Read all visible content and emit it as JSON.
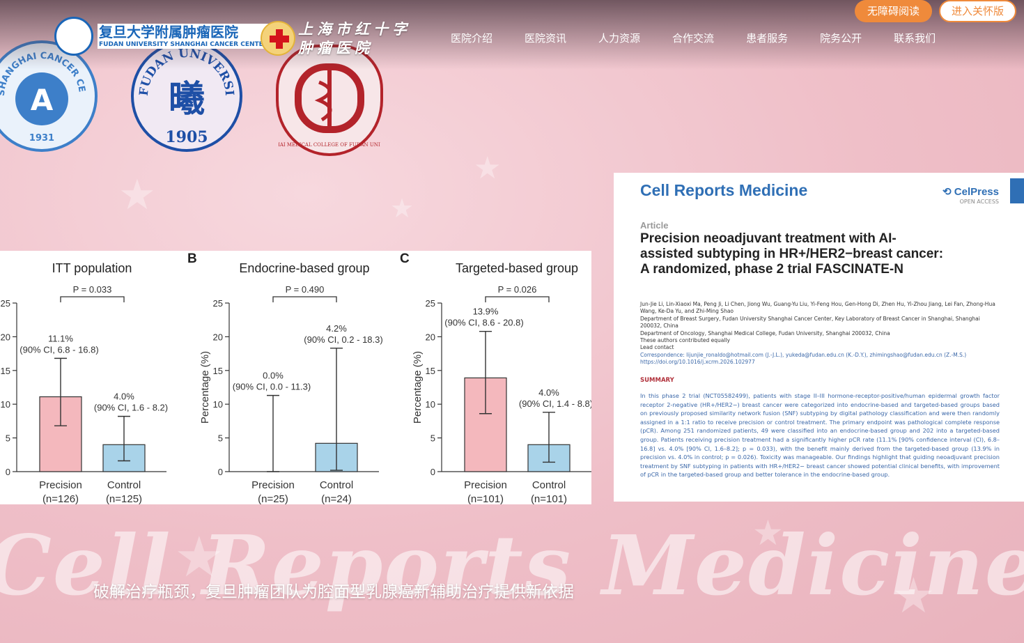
{
  "header": {
    "hospital_name_cn": "复旦大学附属肿瘤医院",
    "hospital_name_en": "FUDAN UNIVERSITY SHANGHAI CANCER CENTER",
    "redcross_name_line1": "上海市红十字",
    "redcross_name_line2": "肿瘤医院",
    "accessibility_button": "无障碍阅读",
    "care_button": "进入关怀版",
    "nav": [
      "医院介绍",
      "医院资讯",
      "人力资源",
      "合作交流",
      "患者服务",
      "院务公开",
      "联系我们"
    ]
  },
  "logos": {
    "cancer_center_text": "SHANGHAI CANCER CENTER",
    "cancer_center_year": "1931",
    "fudan_text": "FUDAN UNIVERSITY",
    "fudan_year": "1905",
    "fudan_glyph": "曦",
    "smc_text": "SHANGHAI MEDICAL COLLEGE OF FUDAN UNIVERSITY"
  },
  "paper": {
    "journal": "Cell Reports Medicine",
    "publisher": "CelPress",
    "open_access": "OPEN ACCESS",
    "article_label": "Article",
    "title": "Precision neoadjuvant treatment with AI-assisted subtyping in HR+/HER2−breast cancer: A randomized, phase 2 trial FASCINATE-N",
    "authors": "Jun-Jie Li, Lin-Xiaoxi Ma, Peng Ji, Li Chen, Jiong Wu, Guang-Yu Liu, Yi-Feng Hou, Gen-Hong Di, Zhen Hu, Yi-Zhou Jiang, Lei Fan, Zhong-Hua Wang, Ke-Da Yu, and Zhi-Ming Shao",
    "affiliation1": "Department of Breast Surgery, Fudan University Shanghai Cancer Center, Key Laboratory of Breast Cancer in Shanghai, Shanghai 200032, China",
    "affiliation2": "Department of Oncology, Shanghai Medical College, Fudan University, Shanghai 200032, China",
    "note_equal": "These authors contributed equally",
    "note_lead": "Lead contact",
    "correspondence": "Correspondence: lijunjie_ronaldo@hotmail.com (J.-J.L.), yukeda@fudan.edu.cn (K.-D.Y.), zhimingshao@fudan.edu.cn (Z.-M.S.)",
    "doi": "https://doi.org/10.1016/j.xcrm.2026.102977",
    "summary_heading": "SUMMARY",
    "summary": "In this phase 2 trial (NCT05582499), patients with stage II–III hormone-receptor-positive/human epidermal growth factor receptor 2-negative (HR+/HER2−) breast cancer were categorized into endocrine-based and targeted-based groups based on previously proposed similarity network fusion (SNF) subtyping by digital pathology classification and were then randomly assigned in a 1:1 ratio to receive precision or control treatment. The primary endpoint was pathological complete response (pCR). Among 251 randomized patients, 49 were classified into an endocrine-based group and 202 into a targeted-based group. Patients receiving precision treatment had a significantly higher pCR rate (11.1% [90% confidence interval (CI), 6.8–16.8] vs. 4.0% [90% CI, 1.6–8.2]; p = 0.033), with the benefit mainly derived from the targeted-based group (13.9% in precision vs. 4.0% in control; p = 0.026). Toxicity was manageable. Our findings highlight that guiding neoadjuvant precision treatment by SNF subtyping in patients with HR+/HER2− breast cancer showed potential clinical benefits, with improvement of pCR in the targeted-based group and better tolerance in the endocrine-based group."
  },
  "watermark": "Cell Reports Medicine",
  "caption": "破解治疗瓶颈，复旦肿瘤团队为腔面型乳腺癌新辅助治疗提供新依据",
  "colors": {
    "precision": "#f4b8bd",
    "control": "#a9d3e9",
    "accent": "#ef8a3b",
    "brand": "#1a66b8"
  },
  "chart_data": [
    {
      "type": "bar",
      "panel_letter": "",
      "title": "ITT population",
      "ylabel": "",
      "ylim": [
        0,
        25
      ],
      "yticks": [
        0,
        5,
        10,
        15,
        20,
        25
      ],
      "categories": [
        "Precision\n(n=126)",
        "Control\n(n=125)"
      ],
      "values": [
        11.1,
        4.0
      ],
      "ci": [
        [
          6.8,
          16.8
        ],
        [
          1.6,
          8.2
        ]
      ],
      "labels": [
        "11.1%",
        "4.0%"
      ],
      "ci_labels": [
        "(90% CI, 6.8 - 16.8)",
        "(90% CI, 1.6 - 8.2)"
      ],
      "p_value": "P = 0.033"
    },
    {
      "type": "bar",
      "panel_letter": "B",
      "title": "Endocrine-based group",
      "ylabel": "Percentage (%)",
      "ylim": [
        0,
        25
      ],
      "yticks": [
        0,
        5,
        10,
        15,
        20,
        25
      ],
      "categories": [
        "Precision\n(n=25)",
        "Control\n(n=24)"
      ],
      "values": [
        0.0,
        4.2
      ],
      "ci": [
        [
          0.0,
          11.3
        ],
        [
          0.2,
          18.3
        ]
      ],
      "labels": [
        "0.0%",
        "4.2%"
      ],
      "ci_labels": [
        "(90% CI, 0.0 - 11.3)",
        "(90% CI, 0.2 - 18.3)"
      ],
      "p_value": "P = 0.490"
    },
    {
      "type": "bar",
      "panel_letter": "C",
      "title": "Targeted-based group",
      "ylabel": "Percentage (%)",
      "ylim": [
        0,
        25
      ],
      "yticks": [
        0,
        5,
        10,
        15,
        20,
        25
      ],
      "categories": [
        "Precision\n(n=101)",
        "Control\n(n=101)"
      ],
      "values": [
        13.9,
        4.0
      ],
      "ci": [
        [
          8.6,
          20.8
        ],
        [
          1.4,
          8.8
        ]
      ],
      "labels": [
        "13.9%",
        "4.0%"
      ],
      "ci_labels": [
        "(90% CI, 8.6 - 20.8)",
        "(90% CI, 1.4 - 8.8)"
      ],
      "p_value": "P = 0.026"
    }
  ]
}
